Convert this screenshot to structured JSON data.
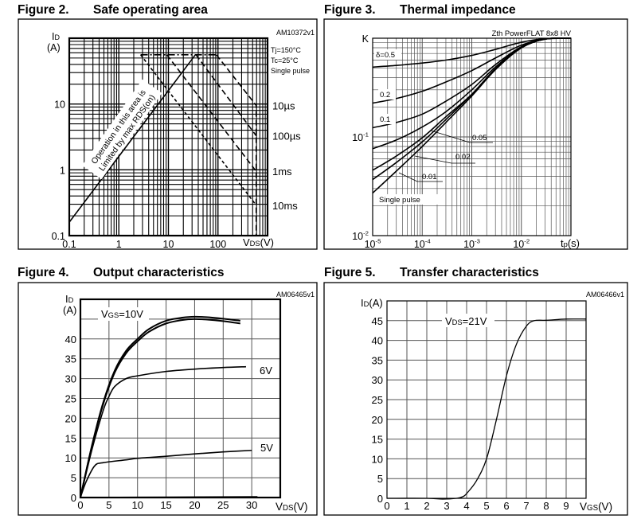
{
  "chart_data": [
    {
      "type": "line",
      "figure_label": "Figure 2.",
      "title": "Safe operating area",
      "code": "AM10372v1",
      "grid": true,
      "xaxis": {
        "scale": "log",
        "range": [
          0.1,
          1000
        ],
        "ticks": [
          {
            "value": 0.1,
            "label": "0.1"
          },
          {
            "value": 1,
            "label": "1"
          },
          {
            "value": 10,
            "label": "10"
          },
          {
            "value": 100,
            "label": "100"
          }
        ],
        "label": {
          "symbol": "V",
          "subscript": "DS",
          "unit": "(V)"
        }
      },
      "yaxis": {
        "scale": "log",
        "range": [
          0.1,
          100
        ],
        "ticks": [
          {
            "value": 0.1,
            "label": "0.1"
          },
          {
            "value": 1,
            "label": "1"
          },
          {
            "value": 10,
            "label": "10"
          }
        ],
        "label": {
          "symbol": "I",
          "subscript": "D",
          "unit": "(A)"
        }
      },
      "conditions": [
        "Tj=150°C",
        "Tc=25°C",
        "Single pulse"
      ],
      "region_note": [
        "Operation in this area is",
        "Limited by max RDS(on)"
      ],
      "series": [
        {
          "style": "solid",
          "points": [
            [
              0.1,
              0.16
            ],
            [
              35,
              56
            ]
          ]
        },
        {
          "style": "dashdot",
          "points": [
            [
              2.75,
              56
            ],
            [
              93,
              56
            ]
          ]
        },
        {
          "name": "10µs",
          "style": "dashed",
          "points": [
            [
              93,
              56
            ],
            [
              590,
              9.5
            ],
            [
              590,
              0.1
            ]
          ]
        },
        {
          "name": "100µs",
          "style": "dashed",
          "points": [
            [
              36,
              56
            ],
            [
              590,
              3.3
            ]
          ]
        },
        {
          "name": "1ms",
          "style": "dashed",
          "points": [
            [
              9.3,
              56
            ],
            [
              590,
              0.95
            ]
          ]
        },
        {
          "name": "10ms",
          "style": "dotdash",
          "points": [
            [
              2.75,
              56
            ],
            [
              590,
              0.29
            ]
          ]
        }
      ]
    },
    {
      "type": "line",
      "figure_label": "Figure 3.",
      "title": "Thermal impedance",
      "code": "Zth PowerFLAT 8x8 HV",
      "grid": true,
      "xaxis": {
        "scale": "log",
        "range": [
          1e-05,
          0.1
        ],
        "ticks": [
          {
            "value": 1e-05,
            "base": "10",
            "exp": "-5"
          },
          {
            "value": 0.0001,
            "base": "10",
            "exp": "-4"
          },
          {
            "value": 0.001,
            "base": "10",
            "exp": "-3"
          },
          {
            "value": 0.01,
            "base": "10",
            "exp": "-2"
          }
        ],
        "label": {
          "symbol": "t",
          "subscript": "p",
          "unit": "(s)"
        }
      },
      "yaxis": {
        "scale": "log",
        "range": [
          0.01,
          1
        ],
        "ticks": [
          {
            "value": 1,
            "label": "K"
          },
          {
            "value": 0.1,
            "base": "10",
            "exp": "-1"
          },
          {
            "value": 0.01,
            "base": "10",
            "exp": "-2"
          }
        ]
      },
      "x": [
        1e-05,
        3e-05,
        0.0001,
        0.0003,
        0.001,
        0.003,
        0.01,
        0.03,
        0.1
      ],
      "series": [
        {
          "name": "δ=0.5",
          "values": [
            0.51,
            0.53,
            0.56,
            0.6,
            0.67,
            0.77,
            0.91,
            0.99,
            1.0
          ]
        },
        {
          "name": "0.2",
          "values": [
            0.22,
            0.245,
            0.29,
            0.36,
            0.47,
            0.63,
            0.85,
            0.98,
            1.0
          ]
        },
        {
          "name": "0.1",
          "values": [
            0.124,
            0.14,
            0.17,
            0.23,
            0.34,
            0.54,
            0.82,
            0.98,
            1.0
          ]
        },
        {
          "name": "0.05",
          "values": [
            0.076,
            0.093,
            0.126,
            0.18,
            0.3,
            0.51,
            0.81,
            0.98,
            1.0
          ]
        },
        {
          "name": "0.02",
          "values": [
            0.046,
            0.064,
            0.098,
            0.16,
            0.27,
            0.49,
            0.8,
            0.98,
            1.0
          ]
        },
        {
          "name": "0.01",
          "values": [
            0.037,
            0.055,
            0.089,
            0.15,
            0.27,
            0.49,
            0.8,
            0.98,
            1.0
          ]
        },
        {
          "name": "Single pulse",
          "values": [
            0.027,
            0.045,
            0.08,
            0.14,
            0.26,
            0.48,
            0.8,
            0.98,
            1.0
          ]
        }
      ]
    },
    {
      "type": "line",
      "figure_label": "Figure 4.",
      "title": "Output characteristics",
      "code": "AM06465v1",
      "grid": true,
      "xaxis": {
        "scale": "linear",
        "range": [
          0,
          35
        ],
        "grid_step": 5,
        "ticks": [
          {
            "value": 0,
            "label": "0"
          },
          {
            "value": 5,
            "label": "5"
          },
          {
            "value": 10,
            "label": "10"
          },
          {
            "value": 15,
            "label": "15"
          },
          {
            "value": 20,
            "label": "20"
          },
          {
            "value": 25,
            "label": "25"
          },
          {
            "value": 30,
            "label": "30"
          }
        ],
        "label": {
          "symbol": "V",
          "subscript": "DS",
          "unit": "(V)"
        }
      },
      "yaxis": {
        "scale": "linear",
        "range": [
          0,
          50
        ],
        "grid_step": 5,
        "ticks": [
          {
            "value": 0,
            "label": "0"
          },
          {
            "value": 5,
            "label": "5"
          },
          {
            "value": 10,
            "label": "10"
          },
          {
            "value": 15,
            "label": "15"
          },
          {
            "value": 20,
            "label": "20"
          },
          {
            "value": 25,
            "label": "25"
          },
          {
            "value": 30,
            "label": "30"
          },
          {
            "value": 35,
            "label": "35"
          },
          {
            "value": 40,
            "label": "40"
          }
        ],
        "label": {
          "symbol": "I",
          "subscript": "D",
          "unit": "(A)"
        }
      },
      "series": [
        {
          "name": "VGS=10V",
          "points": [
            [
              0,
              0
            ],
            [
              2,
              13
            ],
            [
              4,
              24
            ],
            [
              6,
              32
            ],
            [
              8,
              37
            ],
            [
              10,
              40
            ],
            [
              12,
              42.5
            ],
            [
              15,
              44.6
            ],
            [
              18,
              45.4
            ],
            [
              20,
              45.6
            ],
            [
              22,
              45.5
            ],
            [
              25,
              45.1
            ],
            [
              28,
              44.6
            ]
          ]
        },
        {
          "points": [
            [
              0,
              0
            ],
            [
              2,
              12.8
            ],
            [
              4,
              23.6
            ],
            [
              6,
              31.5
            ],
            [
              8,
              36.4
            ],
            [
              10,
              39.4
            ],
            [
              12,
              41.8
            ],
            [
              15,
              43.9
            ],
            [
              18,
              44.8
            ],
            [
              20,
              45.0
            ],
            [
              22,
              44.9
            ],
            [
              25,
              44.5
            ],
            [
              28,
              43.9
            ]
          ]
        },
        {
          "name": "6V",
          "points": [
            [
              0,
              0
            ],
            [
              2,
              12
            ],
            [
              4,
              22
            ],
            [
              5,
              25.5
            ],
            [
              6,
              28
            ],
            [
              8,
              30
            ],
            [
              10,
              30.7
            ],
            [
              15,
              31.8
            ],
            [
              20,
              32.4
            ],
            [
              25,
              32.8
            ],
            [
              29,
              33
            ]
          ]
        },
        {
          "name": "5V",
          "points": [
            [
              0,
              0
            ],
            [
              1,
              4
            ],
            [
              2.5,
              8
            ],
            [
              4,
              8.8
            ],
            [
              8,
              9.5
            ],
            [
              10,
              9.9
            ],
            [
              15,
              10.4
            ],
            [
              20,
              11
            ],
            [
              25,
              11.5
            ],
            [
              30,
              11.9
            ]
          ]
        },
        {
          "points": [
            [
              0,
              0
            ],
            [
              15,
              0.1
            ],
            [
              31,
              0.2
            ]
          ]
        }
      ]
    },
    {
      "type": "line",
      "figure_label": "Figure 5.",
      "title": "Transfer characteristics",
      "code": "AM06466v1",
      "grid": true,
      "xaxis": {
        "scale": "linear",
        "range": [
          0,
          10
        ],
        "grid_step": 1,
        "ticks": [
          {
            "value": 0,
            "label": "0"
          },
          {
            "value": 1,
            "label": "1"
          },
          {
            "value": 2,
            "label": "2"
          },
          {
            "value": 3,
            "label": "3"
          },
          {
            "value": 4,
            "label": "4"
          },
          {
            "value": 5,
            "label": "5"
          },
          {
            "value": 6,
            "label": "6"
          },
          {
            "value": 7,
            "label": "7"
          },
          {
            "value": 8,
            "label": "8"
          },
          {
            "value": 9,
            "label": "9"
          }
        ],
        "label": {
          "symbol": "V",
          "subscript": "GS",
          "unit": "(V)"
        }
      },
      "yaxis": {
        "scale": "linear",
        "range": [
          0,
          50
        ],
        "grid_step": 5,
        "ticks": [
          {
            "value": 0,
            "label": "0"
          },
          {
            "value": 5,
            "label": "5"
          },
          {
            "value": 10,
            "label": "10"
          },
          {
            "value": 15,
            "label": "15"
          },
          {
            "value": 20,
            "label": "20"
          },
          {
            "value": 25,
            "label": "25"
          },
          {
            "value": 30,
            "label": "30"
          },
          {
            "value": 35,
            "label": "35"
          },
          {
            "value": 40,
            "label": "40"
          },
          {
            "value": 45,
            "label": "45"
          }
        ],
        "label": {
          "symbol": "I",
          "subscript": "D",
          "unit": "(A)"
        }
      },
      "series": [
        {
          "name": "VDS=21V",
          "points": [
            [
              0,
              0
            ],
            [
              2,
              0
            ],
            [
              2.8,
              -0.2
            ],
            [
              3.5,
              0
            ],
            [
              3.8,
              0.4
            ],
            [
              4,
              1.2
            ],
            [
              4.5,
              4.5
            ],
            [
              5,
              10
            ],
            [
              5.5,
              20
            ],
            [
              6,
              31
            ],
            [
              6.5,
              39
            ],
            [
              7,
              43.6
            ],
            [
              7.4,
              45
            ],
            [
              8,
              45.1
            ],
            [
              9,
              45.4
            ],
            [
              10,
              45.4
            ]
          ]
        }
      ]
    }
  ]
}
